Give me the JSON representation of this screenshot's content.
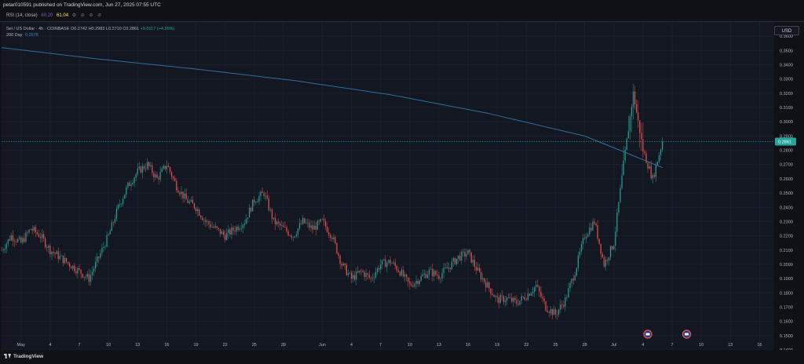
{
  "header": {
    "publisher": "petar01059​1 published on TradingView.com, Jun 27, 2025 07:55 UTC"
  },
  "indicator": {
    "label": "RSI (14, close)",
    "value1": "60.20",
    "value2": "61.04",
    "tools": "⚙ ⊘ ⊘ ⊘"
  },
  "legend": {
    "symbol": "Sei / US Dollar · 4h · COINBASE",
    "open": "O0.2742",
    "high": "H0.2983",
    "low": "L0.2710",
    "close": "C0.2861",
    "change": "+0.0117 (+4.26%)",
    "ma_label": "200 Day",
    "ma_value": "0.2678"
  },
  "currency_button": "USD",
  "branding": "TradingView",
  "colors": {
    "up": "#26a69a",
    "down": "#ef5350",
    "ma": "#2e6f9e",
    "background": "#131722",
    "price_tag": "#26a69a"
  },
  "chart_data": {
    "type": "candlestick",
    "symbol": "SEI/USD",
    "timeframe": "4h",
    "exchange": "COINBASE",
    "ylim": [
      0.14,
      0.37
    ],
    "y_ticks": [
      "0.3600",
      "0.3500",
      "0.3400",
      "0.3300",
      "0.3200",
      "0.3100",
      "0.3000",
      "0.2900",
      "0.2800",
      "0.2700",
      "0.2600",
      "0.2500",
      "0.2400",
      "0.2300",
      "0.2200",
      "0.2100",
      "0.2000",
      "0.1900",
      "0.1800",
      "0.1700",
      "0.1600",
      "0.1500",
      "0.1400"
    ],
    "last_price": "0.2861",
    "x_ticks": [
      "May",
      "4",
      "7",
      "10",
      "13",
      "16",
      "19",
      "22",
      "25",
      "28",
      "Jun",
      "4",
      "7",
      "10",
      "13",
      "16",
      "19",
      "22",
      "25",
      "28",
      "Jul",
      "4",
      "7",
      "10",
      "13",
      "16"
    ],
    "x_start": "2025-04-29",
    "x_ticks_days": [
      2,
      5,
      8,
      11,
      14,
      17,
      20,
      23,
      26,
      29,
      33,
      36,
      39,
      42,
      45,
      48,
      51,
      54,
      57,
      60,
      63,
      66,
      69,
      72,
      75,
      78
    ],
    "daily_close_path": [
      [
        0,
        0.21
      ],
      [
        1,
        0.22
      ],
      [
        2,
        0.215
      ],
      [
        3,
        0.225
      ],
      [
        4,
        0.22
      ],
      [
        5,
        0.21
      ],
      [
        6,
        0.205
      ],
      [
        7,
        0.2
      ],
      [
        8,
        0.195
      ],
      [
        9,
        0.19
      ],
      [
        10,
        0.205
      ],
      [
        11,
        0.22
      ],
      [
        12,
        0.24
      ],
      [
        13,
        0.255
      ],
      [
        14,
        0.265
      ],
      [
        15,
        0.27
      ],
      [
        16,
        0.26
      ],
      [
        17,
        0.27
      ],
      [
        18,
        0.255
      ],
      [
        19,
        0.245
      ],
      [
        20,
        0.24
      ],
      [
        21,
        0.23
      ],
      [
        22,
        0.225
      ],
      [
        23,
        0.22
      ],
      [
        24,
        0.225
      ],
      [
        25,
        0.23
      ],
      [
        26,
        0.245
      ],
      [
        27,
        0.25
      ],
      [
        28,
        0.23
      ],
      [
        29,
        0.225
      ],
      [
        30,
        0.22
      ],
      [
        31,
        0.23
      ],
      [
        32,
        0.225
      ],
      [
        33,
        0.23
      ],
      [
        34,
        0.22
      ],
      [
        35,
        0.2
      ],
      [
        36,
        0.19
      ],
      [
        37,
        0.195
      ],
      [
        38,
        0.19
      ],
      [
        39,
        0.2
      ],
      [
        40,
        0.202
      ],
      [
        41,
        0.195
      ],
      [
        42,
        0.185
      ],
      [
        43,
        0.19
      ],
      [
        44,
        0.195
      ],
      [
        45,
        0.192
      ],
      [
        46,
        0.198
      ],
      [
        47,
        0.205
      ],
      [
        48,
        0.208
      ],
      [
        49,
        0.195
      ],
      [
        50,
        0.185
      ],
      [
        51,
        0.175
      ],
      [
        52,
        0.176
      ],
      [
        53,
        0.173
      ],
      [
        54,
        0.178
      ],
      [
        55,
        0.185
      ],
      [
        56,
        0.17
      ],
      [
        57,
        0.165
      ],
      [
        58,
        0.175
      ],
      [
        59,
        0.195
      ],
      [
        60,
        0.22
      ],
      [
        61,
        0.23
      ],
      [
        62,
        0.2
      ],
      [
        63,
        0.215
      ],
      [
        64,
        0.27
      ],
      [
        65,
        0.32
      ],
      [
        66,
        0.28
      ],
      [
        67,
        0.26
      ],
      [
        68,
        0.2861
      ]
    ],
    "ma_200": {
      "name": "200 Day",
      "points": [
        [
          0,
          0.352
        ],
        [
          10,
          0.344
        ],
        [
          20,
          0.337
        ],
        [
          30,
          0.329
        ],
        [
          40,
          0.319
        ],
        [
          50,
          0.306
        ],
        [
          60,
          0.29
        ],
        [
          64,
          0.279
        ],
        [
          68,
          0.2678
        ]
      ]
    },
    "events": [
      {
        "day": 66.5,
        "label": "flag"
      },
      {
        "day": 70.5,
        "label": "flag"
      }
    ]
  }
}
